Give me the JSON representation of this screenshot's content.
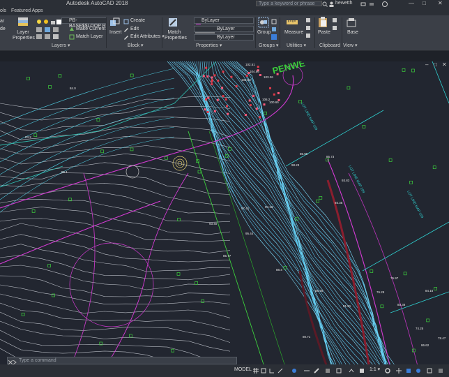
{
  "titlebar": {
    "title": "Autodesk AutoCAD 2018",
    "search_placeholder": "Type a keyword or phrase",
    "user": "hewetth"
  },
  "tabs": [
    "ols",
    "Featured Apps"
  ],
  "ribbon": {
    "layers": {
      "panel_title": "Layers ▾",
      "layer_properties": "Layer Properties",
      "current_layer": "PB-BASE$$LOOP R",
      "make_current": "Make Current",
      "match_layer": "Match Layer",
      "partial_left_1": "ar",
      "partial_left_2": "de"
    },
    "block": {
      "panel_title": "Block ▾",
      "insert": "Insert",
      "create": "Create",
      "edit": "Edit",
      "edit_attributes": "Edit Attributes ▾"
    },
    "properties": {
      "panel_title": "Properties ▾",
      "match_properties": "Match Properties",
      "color": "ByLayer",
      "lineweight": "ByLayer",
      "linetype": "ByLayer"
    },
    "groups": {
      "panel_title": "Groups ▾",
      "group": "Group"
    },
    "utilities": {
      "panel_title": "Utilities ▾",
      "measure": "Measure"
    },
    "clipboard": {
      "panel_title": "Clipboard",
      "paste": "Paste"
    },
    "view": {
      "panel_title": "View ▾",
      "base": "Base"
    }
  },
  "drawing": {
    "street_label": "PENWE",
    "spot_elevations": [
      "102.51",
      "104.56",
      "103.26",
      "102.53",
      "106.2",
      "100.65",
      "85.96",
      "98.23",
      "94.13",
      "93.40",
      "97.41",
      "95.44",
      "85.73",
      "93.83",
      "93.35",
      "86.1",
      "84.0",
      "83.2",
      "80.38",
      "84.16",
      "74.25",
      "80.71",
      "81.91",
      "76.29",
      "75.97",
      "85.77",
      "88.4",
      "88.46",
      "78.47",
      "86.62"
    ],
    "lot_labels": [
      "LOT LINE MAP 199",
      "LOT LINE MAP 199",
      "LOT LINE MAP 199"
    ]
  },
  "command": {
    "placeholder": "Type a command"
  },
  "status": {
    "model": "MODEL",
    "scale": "1:1 ▾"
  }
}
